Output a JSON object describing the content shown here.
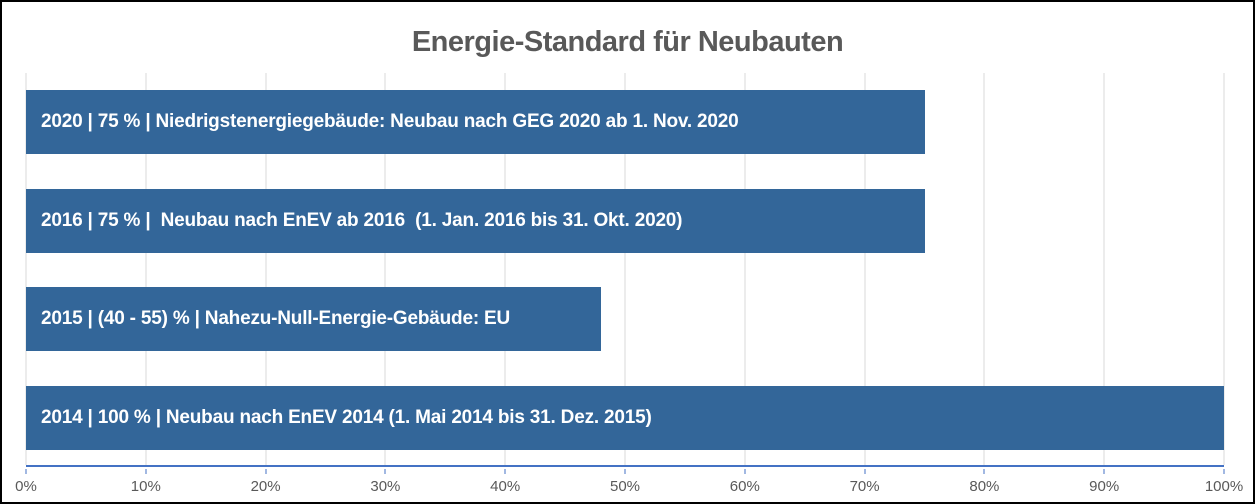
{
  "window": {
    "background": "#FFFFFF",
    "border_color": "#000000"
  },
  "chart_data": {
    "type": "bar",
    "orientation": "horizontal",
    "title": "Energie-Standard für Neubauten",
    "categories": [
      "2020",
      "2016",
      "2015",
      "2014"
    ],
    "values": [
      75,
      75,
      48,
      100
    ],
    "value_labels": [
      "75 %",
      "75 %",
      "(40 - 55) %",
      "100 %"
    ],
    "bar_labels": [
      "2020 | 75 % | Niedrigstenergiegebäude: Neubau nach GEG 2020 ab 1. Nov. 2020",
      "2016 | 75 % |  Neubau nach EnEV ab 2016  (1. Jan. 2016 bis 31. Okt. 2020)",
      "2015 | (40 - 55) % | Nahezu-Null-Energie-Gebäude: EU",
      "2014 | 100 % | Neubau nach EnEV 2014 (1. Mai 2014 bis 31. Dez. 2015)"
    ],
    "xlabel": "",
    "ylabel": "",
    "xlim": [
      0,
      100
    ],
    "x_tick_labels": [
      "0%",
      "10%",
      "20%",
      "30%",
      "40%",
      "50%",
      "60%",
      "70%",
      "80%",
      "90%",
      "100%"
    ],
    "grid": "vertical",
    "legend": "none",
    "colors": {
      "bar": "#336699",
      "axis_line": "#4472C4",
      "gridline": "#D9D9D9",
      "tick_label": "#595959",
      "title": "#595959",
      "bar_label": "#FFFFFF"
    }
  }
}
